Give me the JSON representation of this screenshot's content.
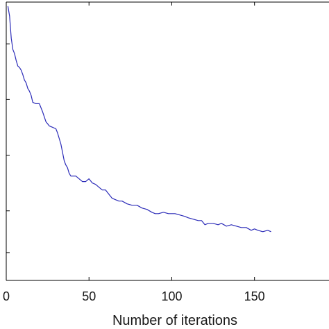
{
  "chart_data": {
    "type": "line",
    "title": "",
    "xlabel": "Number of iterations",
    "ylabel": "",
    "xlim": [
      0,
      195
    ],
    "ylim": [
      0,
      1
    ],
    "x_ticks": [
      0,
      50,
      100,
      150
    ],
    "x_tick_labels": [
      "0",
      "50",
      "100",
      "150"
    ],
    "y_ticks": [
      0.1,
      0.25,
      0.45,
      0.65,
      0.85
    ],
    "grid": false,
    "series": [
      {
        "color": "#2b2bb8",
        "x": [
          1,
          2,
          3,
          4,
          5,
          6,
          7,
          8,
          9,
          10,
          11,
          12,
          13,
          14,
          15,
          16,
          18,
          20,
          22,
          24,
          26,
          28,
          30,
          31,
          32,
          33,
          34,
          35,
          36,
          37,
          38,
          39,
          40,
          42,
          44,
          46,
          48,
          50,
          52,
          54,
          56,
          58,
          60,
          62,
          64,
          66,
          68,
          70,
          73,
          76,
          79,
          82,
          85,
          88,
          90,
          92,
          95,
          98,
          100,
          102,
          105,
          108,
          110,
          113,
          116,
          118,
          120,
          122,
          125,
          128,
          130,
          133,
          136,
          139,
          142,
          145,
          148,
          150,
          152,
          155,
          158,
          160
        ],
        "y": [
          0.985,
          0.95,
          0.87,
          0.83,
          0.815,
          0.79,
          0.77,
          0.765,
          0.755,
          0.74,
          0.72,
          0.71,
          0.69,
          0.68,
          0.665,
          0.64,
          0.635,
          0.635,
          0.605,
          0.57,
          0.555,
          0.55,
          0.545,
          0.53,
          0.51,
          0.49,
          0.46,
          0.43,
          0.415,
          0.405,
          0.385,
          0.375,
          0.375,
          0.375,
          0.365,
          0.355,
          0.355,
          0.365,
          0.35,
          0.345,
          0.335,
          0.325,
          0.325,
          0.31,
          0.295,
          0.29,
          0.285,
          0.285,
          0.275,
          0.27,
          0.27,
          0.26,
          0.255,
          0.245,
          0.24,
          0.24,
          0.245,
          0.24,
          0.24,
          0.24,
          0.235,
          0.23,
          0.225,
          0.22,
          0.215,
          0.215,
          0.2,
          0.205,
          0.205,
          0.2,
          0.205,
          0.195,
          0.2,
          0.195,
          0.19,
          0.19,
          0.18,
          0.185,
          0.18,
          0.175,
          0.18,
          0.175
        ]
      }
    ]
  }
}
